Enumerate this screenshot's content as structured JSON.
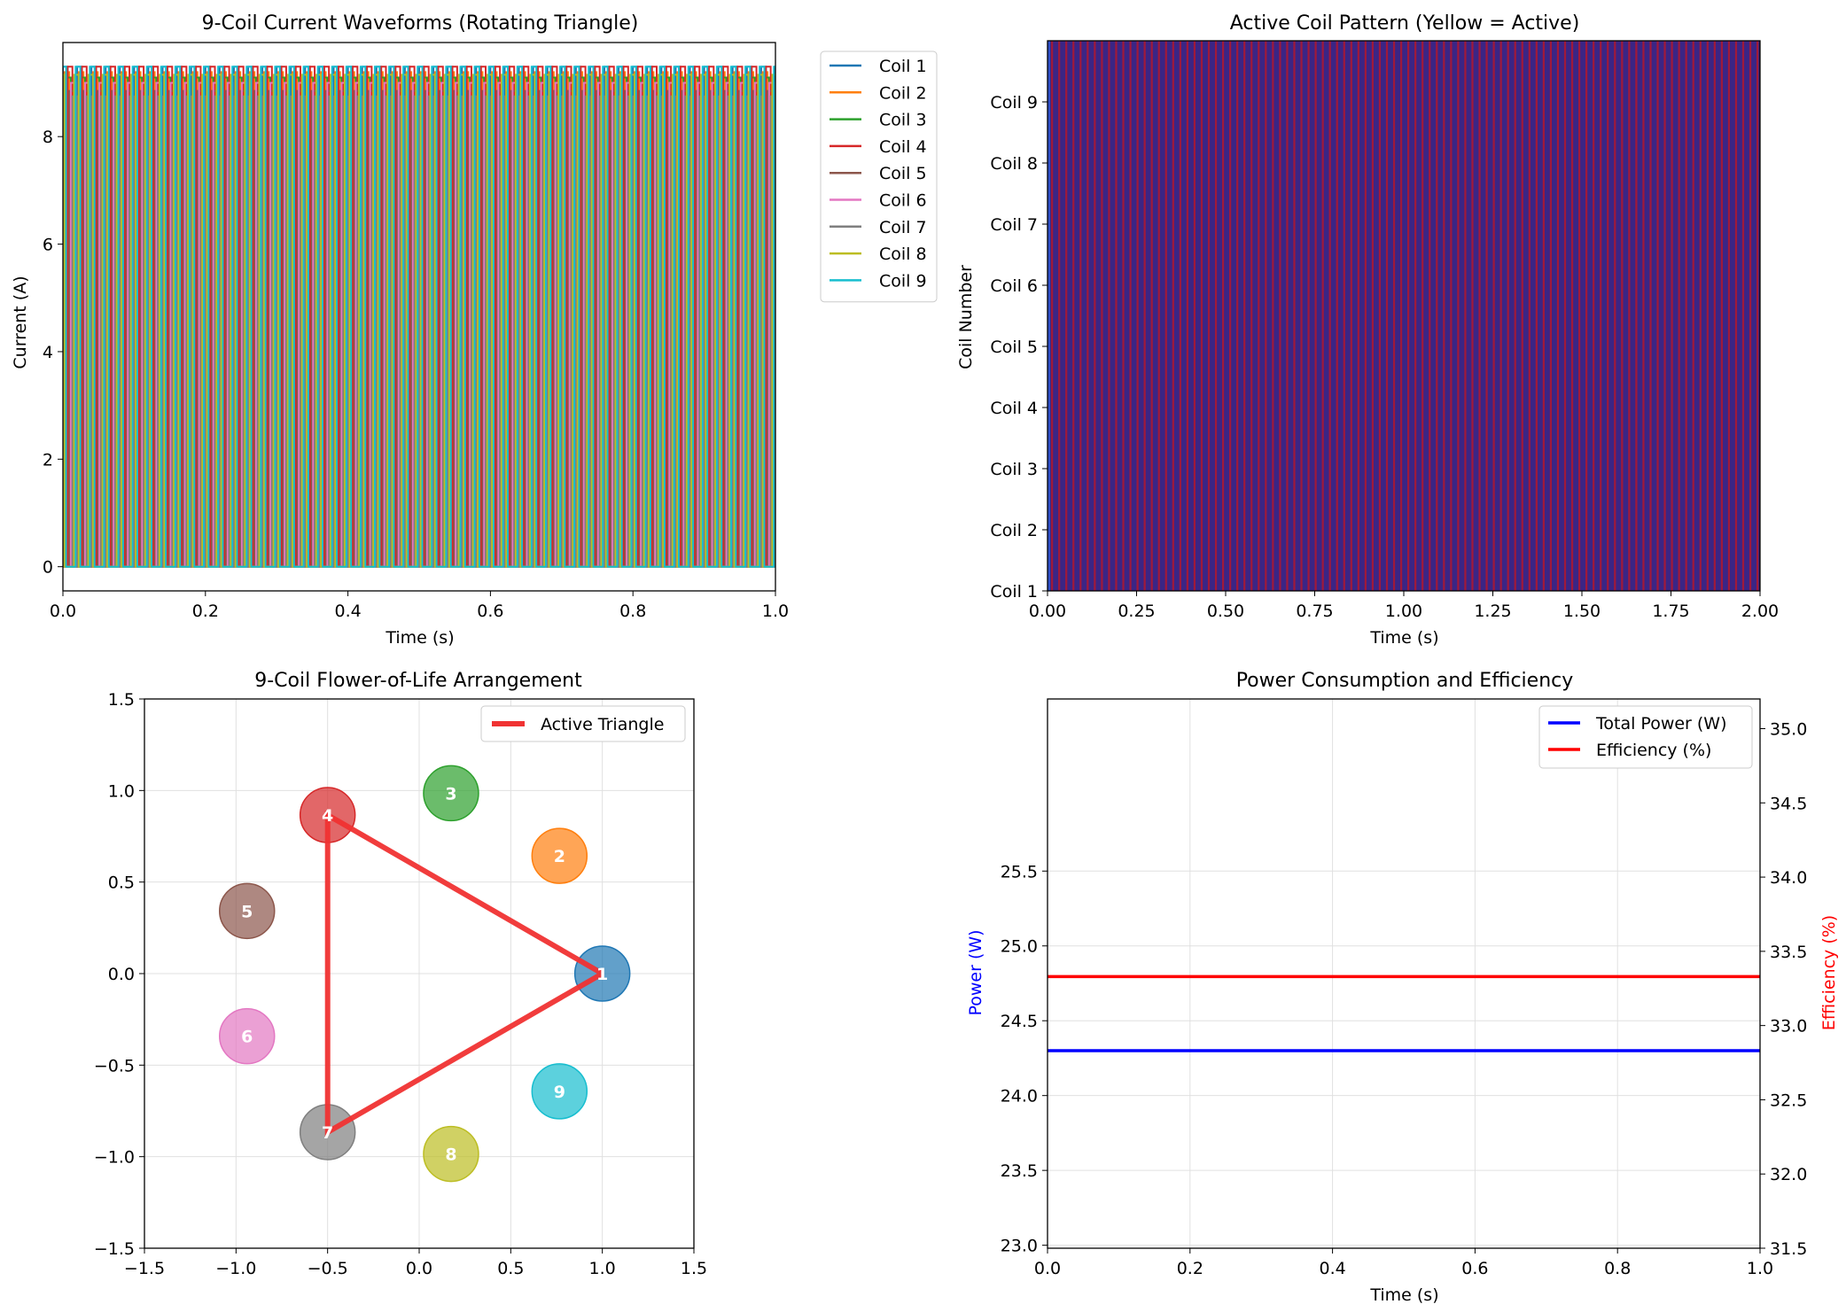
{
  "chart_data": [
    {
      "type": "line",
      "title": "9-Coil Current Waveforms (Rotating Triangle)",
      "xlabel": "Time (s)",
      "ylabel": "Current (A)",
      "xlim": [
        0,
        1
      ],
      "ylim": [
        -0.45,
        9.75
      ],
      "xticks": [
        "0.0",
        "0.2",
        "0.4",
        "0.6",
        "0.8",
        "1.0"
      ],
      "yticks": [
        "0",
        "2",
        "4",
        "6",
        "8"
      ],
      "grid": false,
      "legend_placement": "outside-right",
      "switching_frequency_hz": 50,
      "series": [
        {
          "name": "Coil 1",
          "color": "#1f77b4",
          "peak": 9.3,
          "phase": 0
        },
        {
          "name": "Coil 2",
          "color": "#ff7f0e",
          "peak": 9.2,
          "phase": 0.111
        },
        {
          "name": "Coil 3",
          "color": "#2ca02c",
          "peak": 9.1,
          "phase": 0.222
        },
        {
          "name": "Coil 4",
          "color": "#d62728",
          "peak": 9.3,
          "phase": 0.333
        },
        {
          "name": "Coil 5",
          "color": "#8c564b",
          "peak": 8.85,
          "phase": 0.444
        },
        {
          "name": "Coil 6",
          "color": "#e377c2",
          "peak": 9.0,
          "phase": 0.556
        },
        {
          "name": "Coil 7",
          "color": "#7f7f7f",
          "peak": 8.75,
          "phase": 0.667
        },
        {
          "name": "Coil 8",
          "color": "#bcbd22",
          "peak": 9.15,
          "phase": 0.778
        },
        {
          "name": "Coil 9",
          "color": "#17becf",
          "peak": 9.3,
          "phase": 0.889
        }
      ]
    },
    {
      "type": "heatmap",
      "title": "Active Coil Pattern (Yellow = Active)",
      "xlabel": "Time (s)",
      "ylabel": "Coil Number",
      "xlim": [
        0,
        2
      ],
      "xticks": [
        "0.00",
        "0.25",
        "0.50",
        "0.75",
        "1.00",
        "1.25",
        "1.50",
        "1.75",
        "2.00"
      ],
      "yticks": [
        "Coil 1",
        "Coil 2",
        "Coil 3",
        "Coil 4",
        "Coil 5",
        "Coil 6",
        "Coil 7",
        "Coil 8",
        "Coil 9"
      ],
      "stripe_period_s": 0.02,
      "colors": {
        "base": "#3b2585",
        "stripe": "#a0193a",
        "edge": "#2f4fc8"
      }
    },
    {
      "type": "scatter",
      "title": "9-Coil Flower-of-Life Arrangement",
      "xlim": [
        -1.5,
        1.5
      ],
      "ylim": [
        -1.5,
        1.5
      ],
      "xticks": [
        "−1.5",
        "−1.0",
        "−0.5",
        "0.0",
        "0.5",
        "1.0",
        "1.5"
      ],
      "yticks": [
        "−1.5",
        "−1.0",
        "−0.5",
        "0.0",
        "0.5",
        "1.0",
        "1.5"
      ],
      "grid": true,
      "legend_placement": "top-right",
      "legend_label": "Active Triangle",
      "triangle_color": "#f03232",
      "triangle_vertices": [
        1,
        4,
        7
      ],
      "coils": [
        {
          "label": "1",
          "x": 1.0,
          "y": 0.0,
          "color": "#1f77b4"
        },
        {
          "label": "2",
          "x": 0.766,
          "y": 0.643,
          "color": "#ff7f0e"
        },
        {
          "label": "3",
          "x": 0.174,
          "y": 0.985,
          "color": "#2ca02c"
        },
        {
          "label": "4",
          "x": -0.5,
          "y": 0.866,
          "color": "#d62728"
        },
        {
          "label": "5",
          "x": -0.94,
          "y": 0.342,
          "color": "#8c564b"
        },
        {
          "label": "6",
          "x": -0.94,
          "y": -0.342,
          "color": "#e377c2"
        },
        {
          "label": "7",
          "x": -0.5,
          "y": -0.866,
          "color": "#7f7f7f"
        },
        {
          "label": "8",
          "x": 0.174,
          "y": -0.985,
          "color": "#bcbd22"
        },
        {
          "label": "9",
          "x": 0.766,
          "y": -0.643,
          "color": "#17becf"
        }
      ]
    },
    {
      "type": "line",
      "title": "Power Consumption and Efficiency",
      "xlabel": "Time (s)",
      "ylabel": "Power (W)",
      "ylabel_right": "Efficiency (%)",
      "ylabel_color": "#0000ff",
      "ylabel_right_color": "#ff0000",
      "xlim": [
        0,
        1
      ],
      "ylim": [
        22.98,
        26.65
      ],
      "ylim_right": [
        31.5,
        35.2
      ],
      "xticks": [
        "0.0",
        "0.2",
        "0.4",
        "0.6",
        "0.8",
        "1.0"
      ],
      "yticks": [
        "23.0",
        "23.5",
        "24.0",
        "24.5",
        "25.0",
        "25.5"
      ],
      "yticks_right": [
        "31.5",
        "32.0",
        "32.5",
        "33.0",
        "33.5",
        "34.0",
        "34.5",
        "35.0"
      ],
      "grid": true,
      "legend_placement": "top-right",
      "series": [
        {
          "name": "Total Power (W)",
          "color": "#0000ff",
          "axis": "left",
          "x": [
            0,
            1
          ],
          "values": [
            24.3,
            24.3
          ]
        },
        {
          "name": "Efficiency (%)",
          "color": "#ff0000",
          "axis": "right",
          "x": [
            0,
            1
          ],
          "values": [
            33.33,
            33.33
          ]
        }
      ]
    }
  ]
}
